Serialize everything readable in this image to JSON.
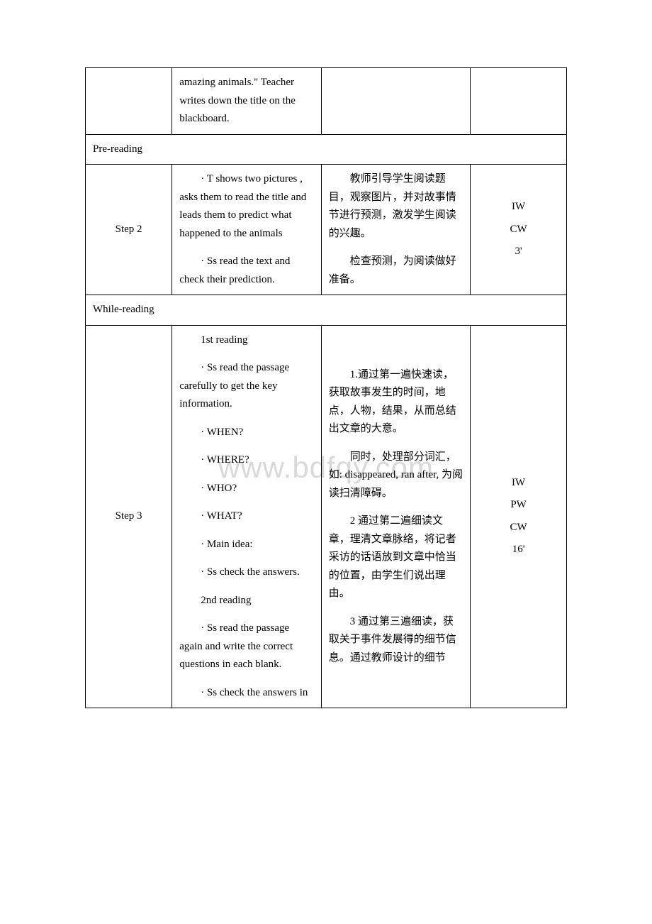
{
  "watermark": "www.bdfqy.com",
  "row1": {
    "activity": "amazing animals.\" Teacher writes down the title on the blackboard."
  },
  "section1": "Pre-reading",
  "step2": {
    "label": "Step 2",
    "activity_p1": "· T shows two pictures , asks them to read the title and leads them to predict what happened to the animals",
    "activity_p2": "· Ss read the text and check their prediction.",
    "purpose_p1": "教师引导学生阅读题目，观察图片，并对故事情节进行预测，激发学生阅读的兴趣。",
    "purpose_p2": "检查预测，为阅读做好准备。",
    "mode1": "IW",
    "mode2": "CW",
    "mode3": "3'"
  },
  "section2": "While-reading",
  "step3": {
    "label": "Step 3",
    "activity_p1": "1st reading",
    "activity_p2": "· Ss read the passage carefully to get the key information.",
    "activity_p3": "· WHEN?",
    "activity_p4": "· WHERE?",
    "activity_p5": "· WHO?",
    "activity_p6": "· WHAT?",
    "activity_p7": "· Main idea:",
    "activity_p8": "· Ss check the answers.",
    "activity_p9": "2nd reading",
    "activity_p10": "· Ss read the passage again and write the correct questions in each blank.",
    "activity_p11": "· Ss check the answers in",
    "purpose_p1": "1.通过第一遍快速读，获取故事发生的时间，地点，人物，结果，从而总结出文章的大意。",
    "purpose_p2": "同时，处理部分词汇，如: disappeared, ran after, 为阅读扫清障碍。",
    "purpose_p3": "2 通过第二遍细读文章，理清文章脉络，将记者采访的话语放到文章中恰当的位置，由学生们说出理由。",
    "purpose_p4": "3 通过第三遍细读，获取关于事件发展得的细节信息。通过教师设计的细节",
    "mode1": "IW",
    "mode2": "PW",
    "mode3": "CW",
    "mode4": "16'"
  }
}
